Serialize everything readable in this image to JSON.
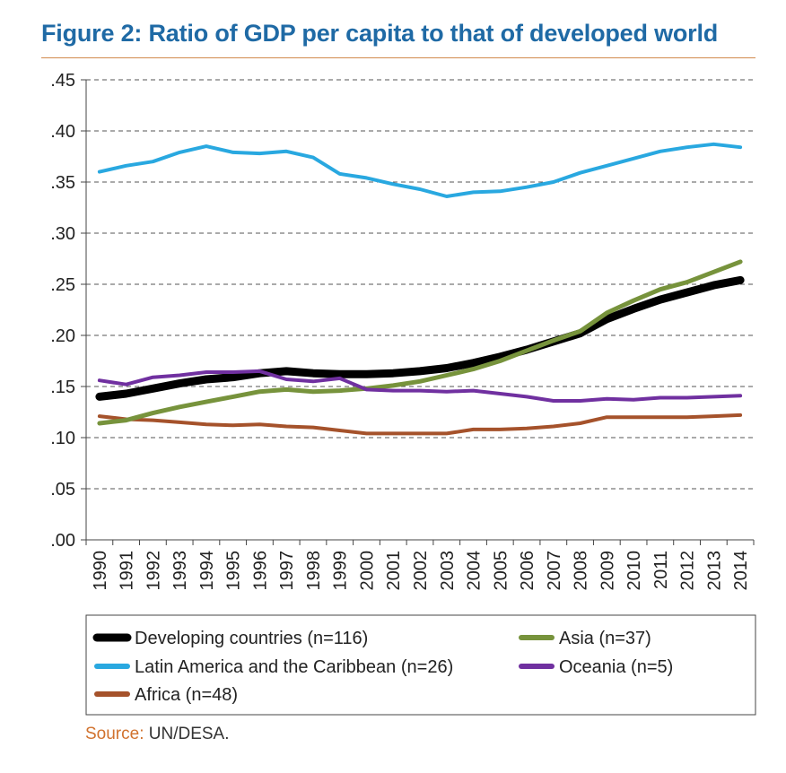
{
  "title": "Figure 2: Ratio of GDP per capita to that of developed world",
  "source": {
    "label": "Source:",
    "text": " UN/DESA."
  },
  "chart_data": {
    "type": "line",
    "title": "Figure 2: Ratio of GDP per capita to that of developed world",
    "xlabel": "",
    "ylabel": "",
    "ylim": [
      0,
      0.45
    ],
    "yticks": [
      ".00",
      ".05",
      ".10",
      ".15",
      ".20",
      ".25",
      ".30",
      ".35",
      ".40",
      ".45"
    ],
    "grid": true,
    "legend_position": "bottom",
    "x": [
      "1990",
      "1991",
      "1992",
      "1993",
      "1994",
      "1995",
      "1996",
      "1997",
      "1998",
      "1999",
      "2000",
      "2001",
      "2002",
      "2003",
      "2004",
      "2005",
      "2006",
      "2007",
      "2008",
      "2009",
      "2010",
      "2011",
      "2012",
      "2013",
      "2014"
    ],
    "series": [
      {
        "name": "Developing countries (n=116)",
        "color": "#000000",
        "width": 9,
        "values": [
          0.14,
          0.143,
          0.148,
          0.153,
          0.157,
          0.159,
          0.163,
          0.165,
          0.163,
          0.162,
          0.162,
          0.163,
          0.165,
          0.168,
          0.173,
          0.179,
          0.186,
          0.194,
          0.202,
          0.216,
          0.226,
          0.235,
          0.242,
          0.249,
          0.254
        ]
      },
      {
        "name": "Latin America and the Caribbean (n=26)",
        "color": "#29a8e0",
        "width": 4,
        "values": [
          0.36,
          0.366,
          0.37,
          0.379,
          0.385,
          0.379,
          0.378,
          0.38,
          0.374,
          0.358,
          0.354,
          0.348,
          0.343,
          0.336,
          0.34,
          0.341,
          0.345,
          0.35,
          0.359,
          0.366,
          0.373,
          0.38,
          0.384,
          0.387,
          0.384
        ]
      },
      {
        "name": "Africa (n=48)",
        "color": "#a5522b",
        "width": 4,
        "values": [
          0.121,
          0.118,
          0.117,
          0.115,
          0.113,
          0.112,
          0.113,
          0.111,
          0.11,
          0.107,
          0.104,
          0.104,
          0.104,
          0.104,
          0.108,
          0.108,
          0.109,
          0.111,
          0.114,
          0.12,
          0.12,
          0.12,
          0.12,
          0.121,
          0.122
        ]
      },
      {
        "name": "Asia (n=37)",
        "color": "#77933c",
        "width": 5,
        "values": [
          0.114,
          0.117,
          0.124,
          0.13,
          0.135,
          0.14,
          0.145,
          0.147,
          0.145,
          0.146,
          0.148,
          0.151,
          0.155,
          0.161,
          0.167,
          0.175,
          0.185,
          0.195,
          0.204,
          0.222,
          0.234,
          0.245,
          0.252,
          0.262,
          0.272
        ]
      },
      {
        "name": "Oceania (n=5)",
        "color": "#7030a0",
        "width": 4,
        "values": [
          0.156,
          0.152,
          0.159,
          0.161,
          0.164,
          0.164,
          0.165,
          0.157,
          0.155,
          0.158,
          0.147,
          0.146,
          0.146,
          0.145,
          0.146,
          0.143,
          0.14,
          0.136,
          0.136,
          0.138,
          0.137,
          0.139,
          0.139,
          0.14,
          0.141
        ]
      }
    ],
    "legend_layout": [
      {
        "series": 0
      },
      {
        "series": 3
      },
      {
        "series": 1
      },
      {
        "series": 4
      },
      {
        "series": 2
      }
    ]
  }
}
